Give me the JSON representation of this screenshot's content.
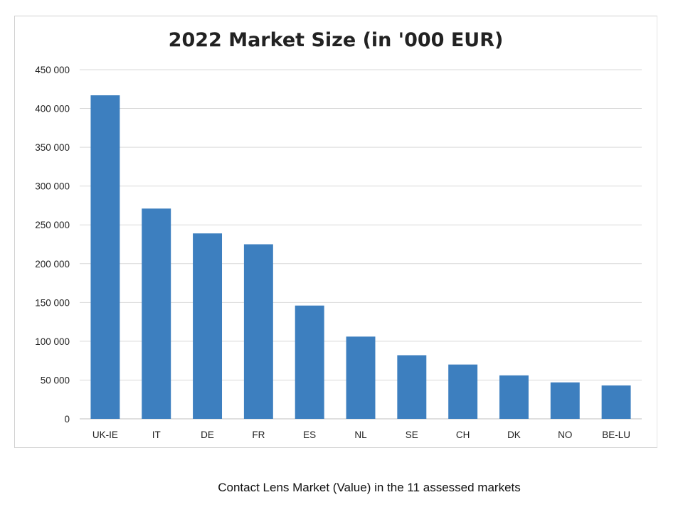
{
  "caption": "Contact Lens Market (Value) in the 11 assessed markets",
  "chart_data": {
    "type": "bar",
    "title": "2022 Market Size (in '000 EUR)",
    "xlabel": "",
    "ylabel": "",
    "categories": [
      "UK-IE",
      "IT",
      "DE",
      "FR",
      "ES",
      "NL",
      "SE",
      "CH",
      "DK",
      "NO",
      "BE-LU"
    ],
    "values": [
      417000,
      271000,
      239000,
      225000,
      146000,
      106000,
      82000,
      70000,
      56000,
      47000,
      43000
    ],
    "ylim": [
      0,
      450000
    ],
    "yticks": [
      {
        "value": 0,
        "label": "0"
      },
      {
        "value": 50000,
        "label": "50 000"
      },
      {
        "value": 100000,
        "label": "100 000"
      },
      {
        "value": 150000,
        "label": "150 000"
      },
      {
        "value": 200000,
        "label": "200 000"
      },
      {
        "value": 250000,
        "label": "250 000"
      },
      {
        "value": 300000,
        "label": "300 000"
      },
      {
        "value": 350000,
        "label": "350 000"
      },
      {
        "value": 400000,
        "label": "400 000"
      },
      {
        "value": 450000,
        "label": "450 000"
      }
    ],
    "grid": true,
    "legend": "none",
    "bar_color": "#3d7fbf",
    "grid_color": "#d9d9d9"
  }
}
